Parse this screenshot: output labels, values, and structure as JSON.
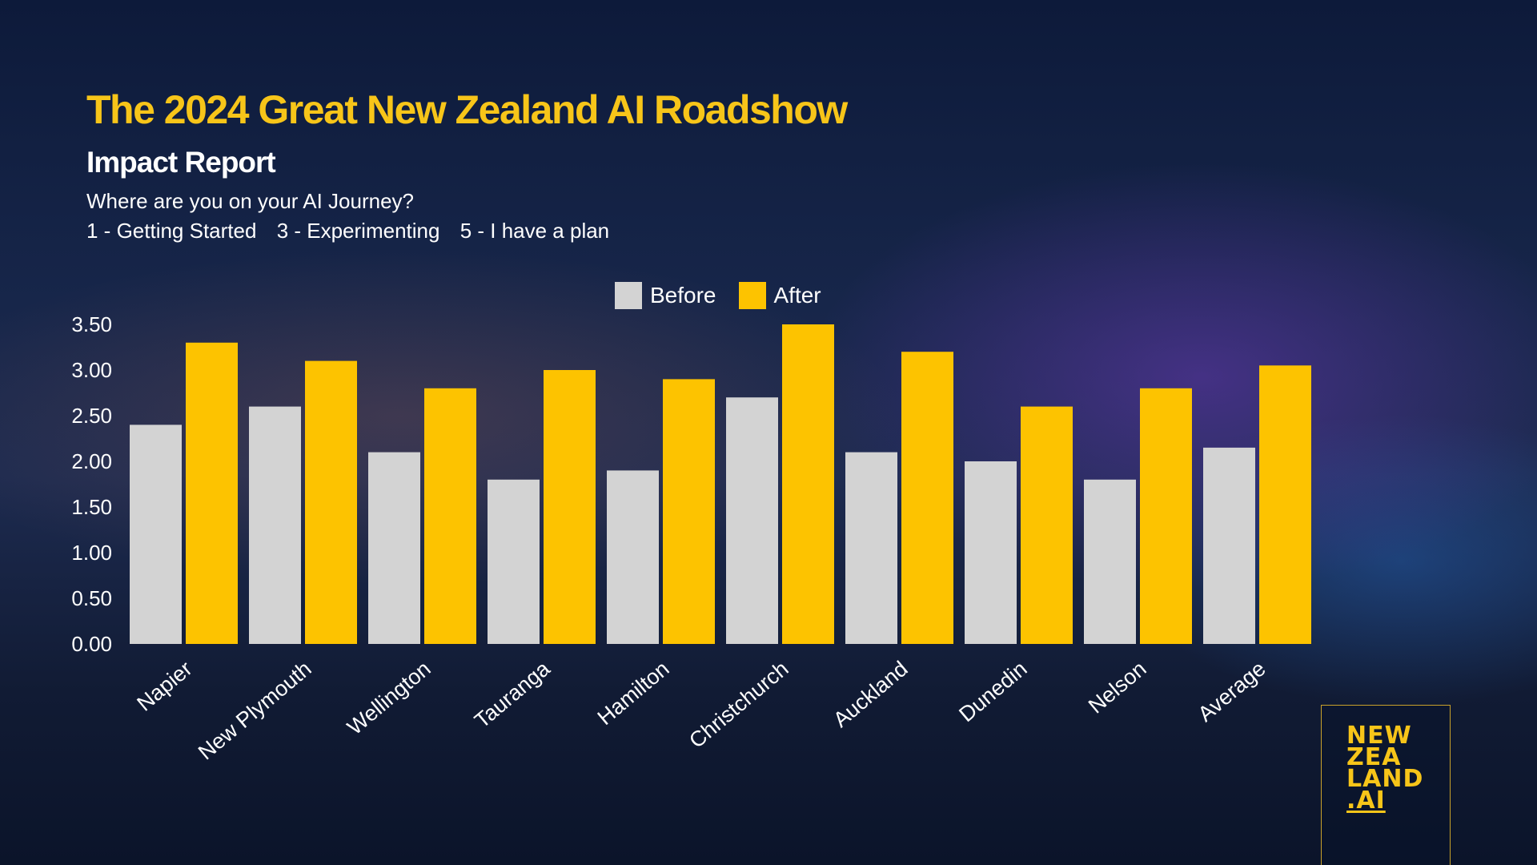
{
  "header": {
    "title": "The 2024 Great New Zealand AI Roadshow",
    "subtitle": "Impact Report",
    "question": "Where are you on your AI Journey?",
    "scale": [
      "1 - Getting Started",
      "3 - Experimenting",
      "5 - I have a plan"
    ]
  },
  "colors": {
    "before": "#d3d3d3",
    "after": "#fdc300",
    "title": "#f7c519"
  },
  "chart_data": {
    "type": "bar",
    "title": "",
    "xlabel": "",
    "ylabel": "",
    "ylim": [
      0,
      3.5
    ],
    "yticks": [
      "0.00",
      "0.50",
      "1.00",
      "1.50",
      "2.00",
      "2.50",
      "3.00",
      "3.50"
    ],
    "categories": [
      "Napier",
      "New Plymouth",
      "Wellington",
      "Tauranga",
      "Hamilton",
      "Christchurch",
      "Auckland",
      "Dunedin",
      "Nelson",
      "Average"
    ],
    "series": [
      {
        "name": "Before",
        "values": [
          2.4,
          2.6,
          2.1,
          1.8,
          1.9,
          2.7,
          2.1,
          2.0,
          1.8,
          2.15
        ]
      },
      {
        "name": "After",
        "values": [
          3.3,
          3.1,
          2.8,
          3.0,
          2.9,
          3.5,
          3.2,
          2.6,
          2.8,
          3.05
        ]
      }
    ],
    "legend_position": "top-center",
    "grid": false
  },
  "logo": {
    "lines": [
      "NEW",
      "ZEA",
      "LAND",
      ".AI"
    ]
  }
}
